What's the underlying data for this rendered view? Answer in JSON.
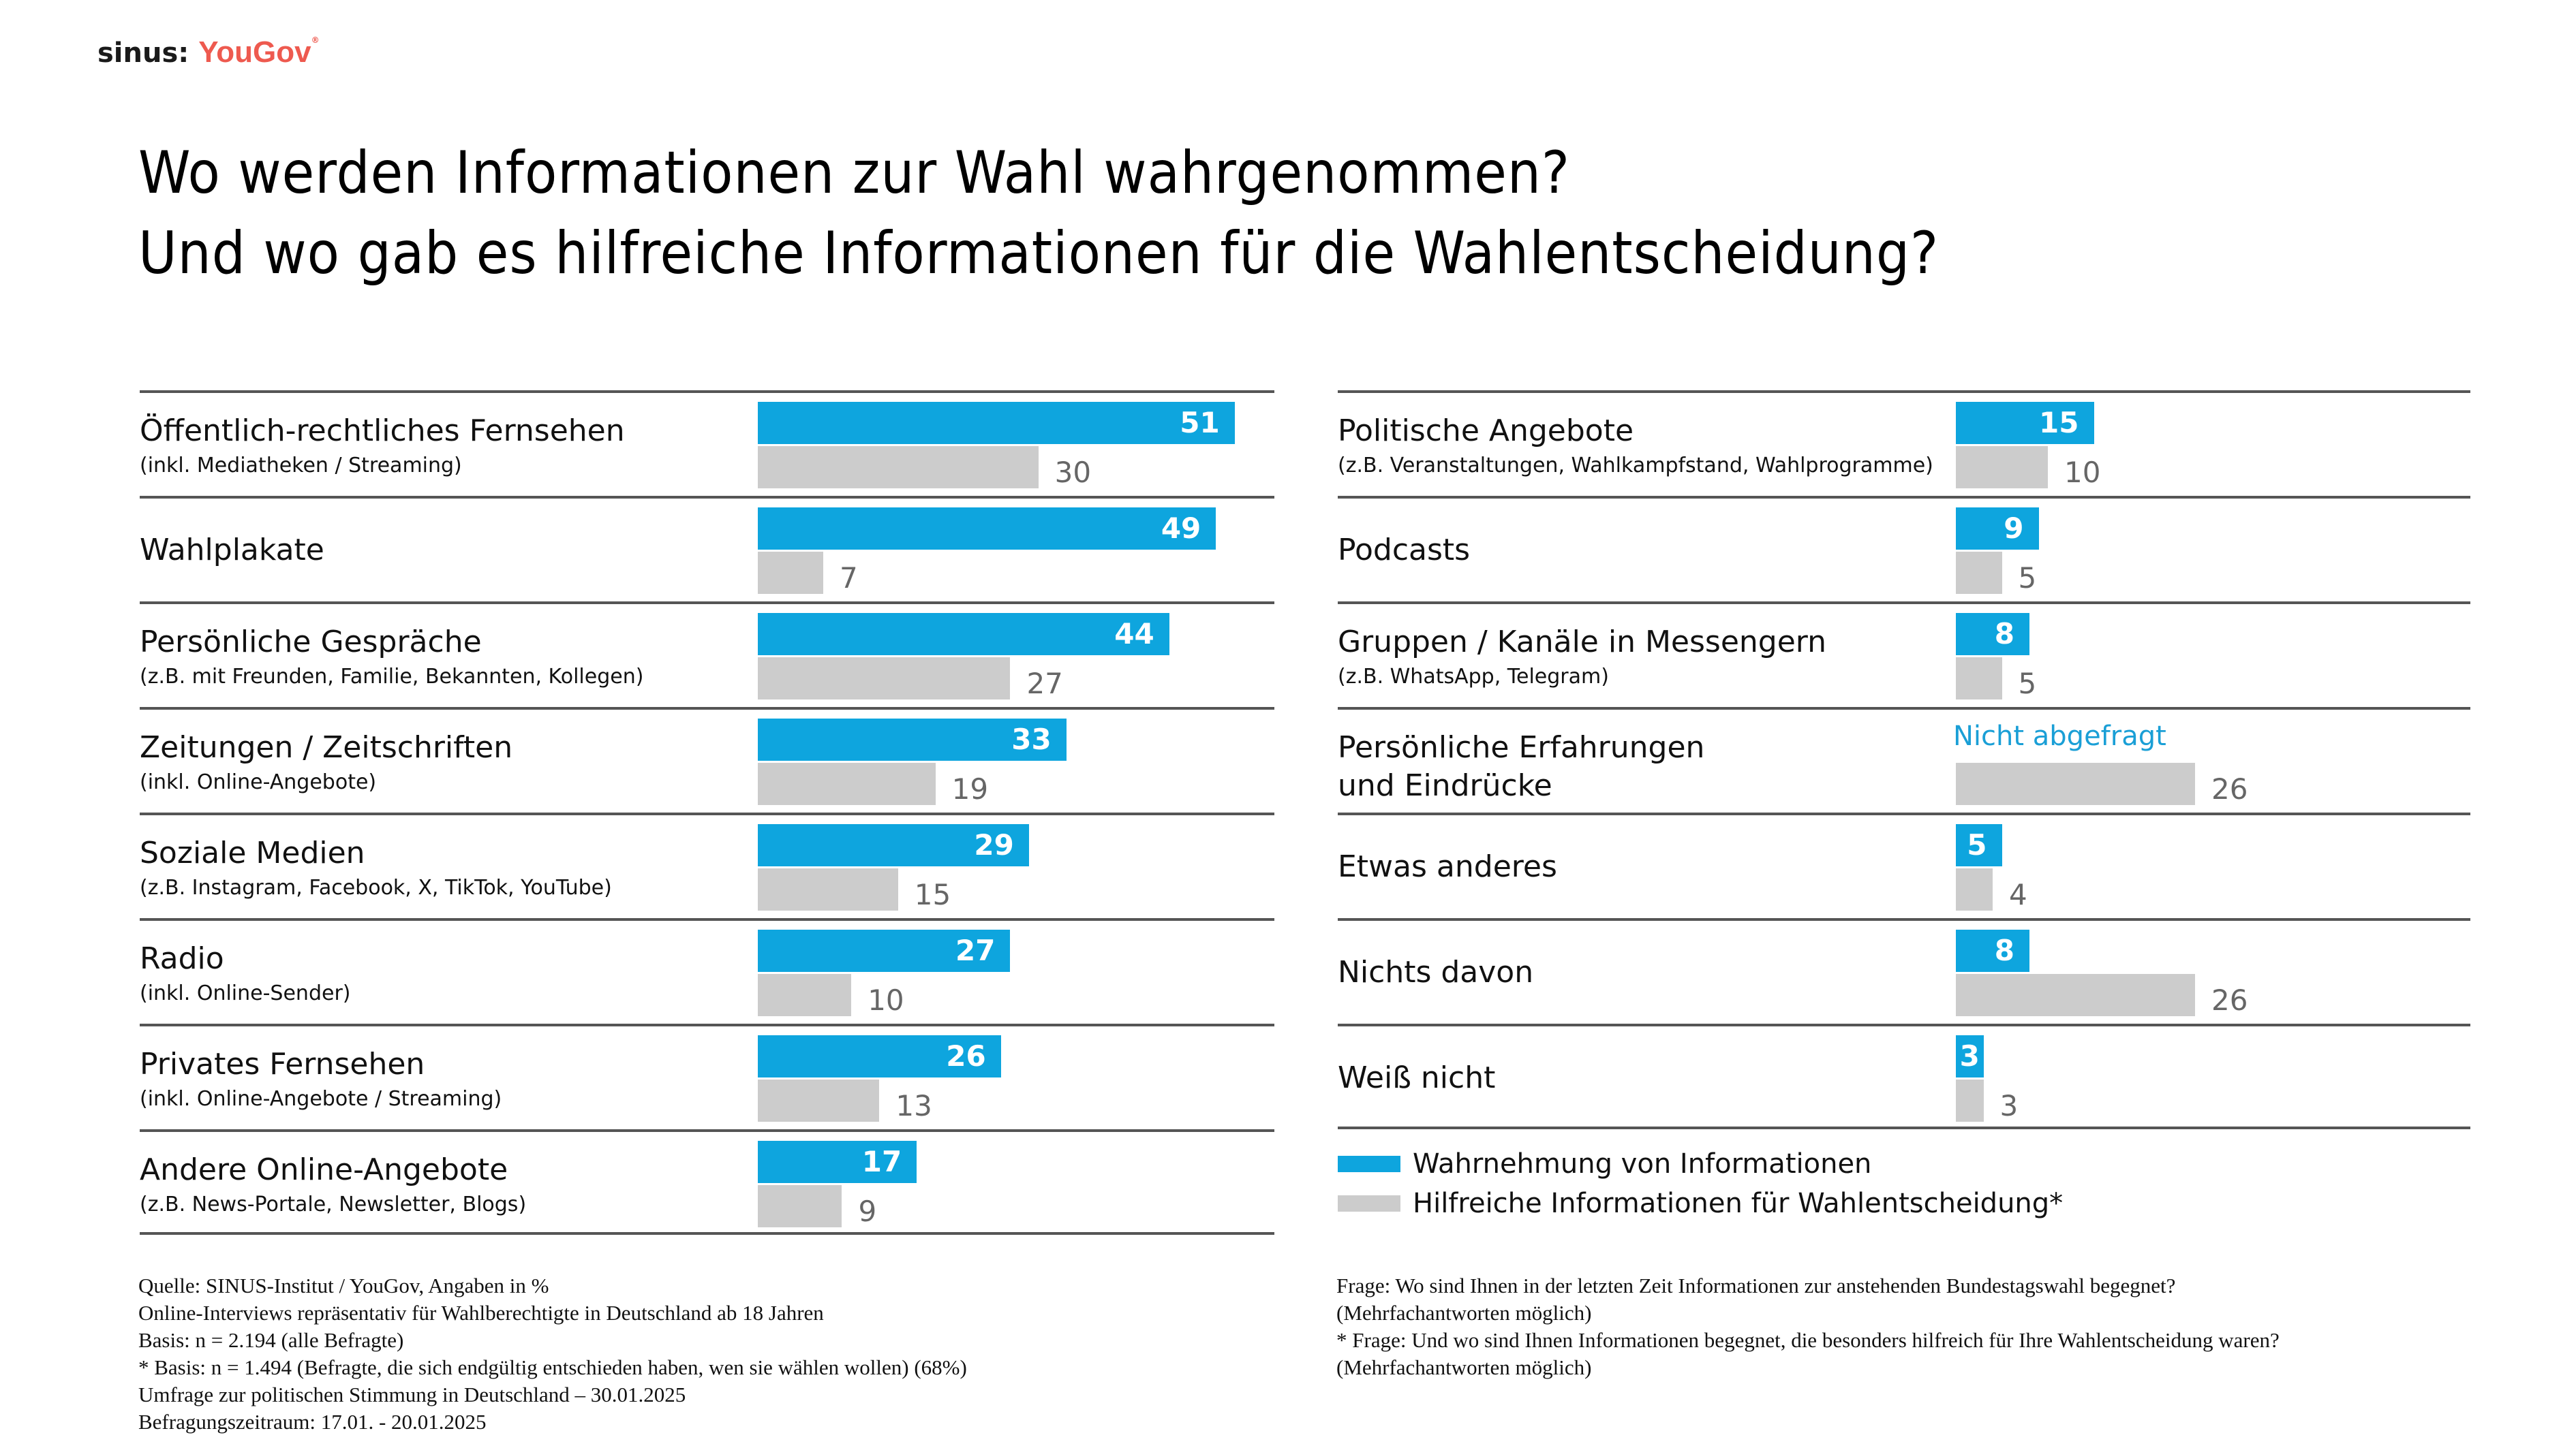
{
  "logo": {
    "left": "sinus:",
    "right": "YouGov",
    "reg": "®"
  },
  "title": {
    "line1": "Wo werden Informationen zur Wahl wahrgenommen?",
    "line2": "Und wo gab es hilfreiche Informationen für die Wahlentscheidung?"
  },
  "colors": {
    "series1": "#0ea5de",
    "series2": "#cccccc",
    "not_asked": "#1a9fd6",
    "brand": "#ee5a4f"
  },
  "chart_data": [
    {
      "type": "bar",
      "orientation": "horizontal",
      "position": "left",
      "categories": [
        {
          "label": "Öffentlich-rechtliches Fernsehen",
          "sub": "(inkl. Mediatheken / Streaming)"
        },
        {
          "label": "Wahlplakate",
          "sub": ""
        },
        {
          "label": "Persönliche Gespräche",
          "sub": "(z.B. mit Freunden, Familie, Bekannten, Kollegen)"
        },
        {
          "label": "Zeitungen / Zeitschriften",
          "sub": "(inkl. Online-Angebote)"
        },
        {
          "label": "Soziale Medien",
          "sub": "(z.B. Instagram, Facebook, X, TikTok, YouTube)"
        },
        {
          "label": "Radio",
          "sub": "(inkl. Online-Sender)"
        },
        {
          "label": "Privates Fernsehen",
          "sub": "(inkl. Online-Angebote / Streaming)"
        },
        {
          "label": "Andere Online-Angebote",
          "sub": "(z.B. News-Portale, Newsletter, Blogs)"
        }
      ],
      "series": [
        {
          "name": "Wahrnehmung von Informationen",
          "values": [
            51,
            49,
            44,
            33,
            29,
            27,
            26,
            17
          ]
        },
        {
          "name": "Hilfreiche Informationen für Wahlentscheidung*",
          "values": [
            30,
            7,
            27,
            19,
            15,
            10,
            13,
            9
          ]
        }
      ],
      "xlim": [
        0,
        100
      ],
      "unit": "%"
    },
    {
      "type": "bar",
      "orientation": "horizontal",
      "position": "right",
      "categories": [
        {
          "label": "Politische Angebote",
          "sub": "(z.B. Veranstaltungen, Wahlkampfstand, Wahlprogramme)"
        },
        {
          "label": "Podcasts",
          "sub": ""
        },
        {
          "label": "Gruppen / Kanäle in Messengern",
          "sub": "(z.B. WhatsApp, Telegram)"
        },
        {
          "label": "Persönliche Erfahrungen",
          "label2": "und Eindrücke",
          "sub": ""
        },
        {
          "label": "Etwas anderes",
          "sub": ""
        },
        {
          "label": "Nichts davon",
          "sub": ""
        },
        {
          "label": "Weiß nicht",
          "sub": ""
        }
      ],
      "series": [
        {
          "name": "Wahrnehmung von Informationen",
          "values": [
            15,
            9,
            8,
            null,
            5,
            8,
            3
          ]
        },
        {
          "name": "Hilfreiche Informationen für Wahlentscheidung*",
          "values": [
            10,
            5,
            5,
            26,
            4,
            26,
            3
          ]
        }
      ],
      "annotations": [
        {
          "category_index": 3,
          "series": 0,
          "text": "Nicht abgefragt"
        }
      ],
      "xlim": [
        0,
        100
      ],
      "unit": "%"
    }
  ],
  "legend": {
    "placement": "bottom-right",
    "items": [
      {
        "label": "Wahrnehmung von Informationen"
      },
      {
        "label": "Hilfreiche Informationen für Wahlentscheidung*"
      }
    ]
  },
  "notes_left": [
    "Quelle: SINUS-Institut / YouGov, Angaben in %",
    "Online-Interviews repräsentativ für Wahlberechtigte in Deutschland ab 18 Jahren",
    "Basis: n = 2.194 (alle Befragte)",
    "* Basis: n = 1.494 (Befragte, die sich endgültig entschieden haben, wen sie wählen wollen) (68%)",
    "Umfrage zur politischen Stimmung in Deutschland – 30.01.2025",
    "Befragungszeitraum: 17.01. - 20.01.2025"
  ],
  "notes_right": [
    "Frage: Wo sind Ihnen in der letzten Zeit Informationen zur anstehenden Bundestagswahl begegnet?",
    "(Mehrfachantworten möglich)",
    "* Frage: Und wo sind Ihnen Informationen begegnet, die besonders hilfreich für Ihre Wahlentscheidung waren?",
    "(Mehrfachantworten möglich)"
  ]
}
